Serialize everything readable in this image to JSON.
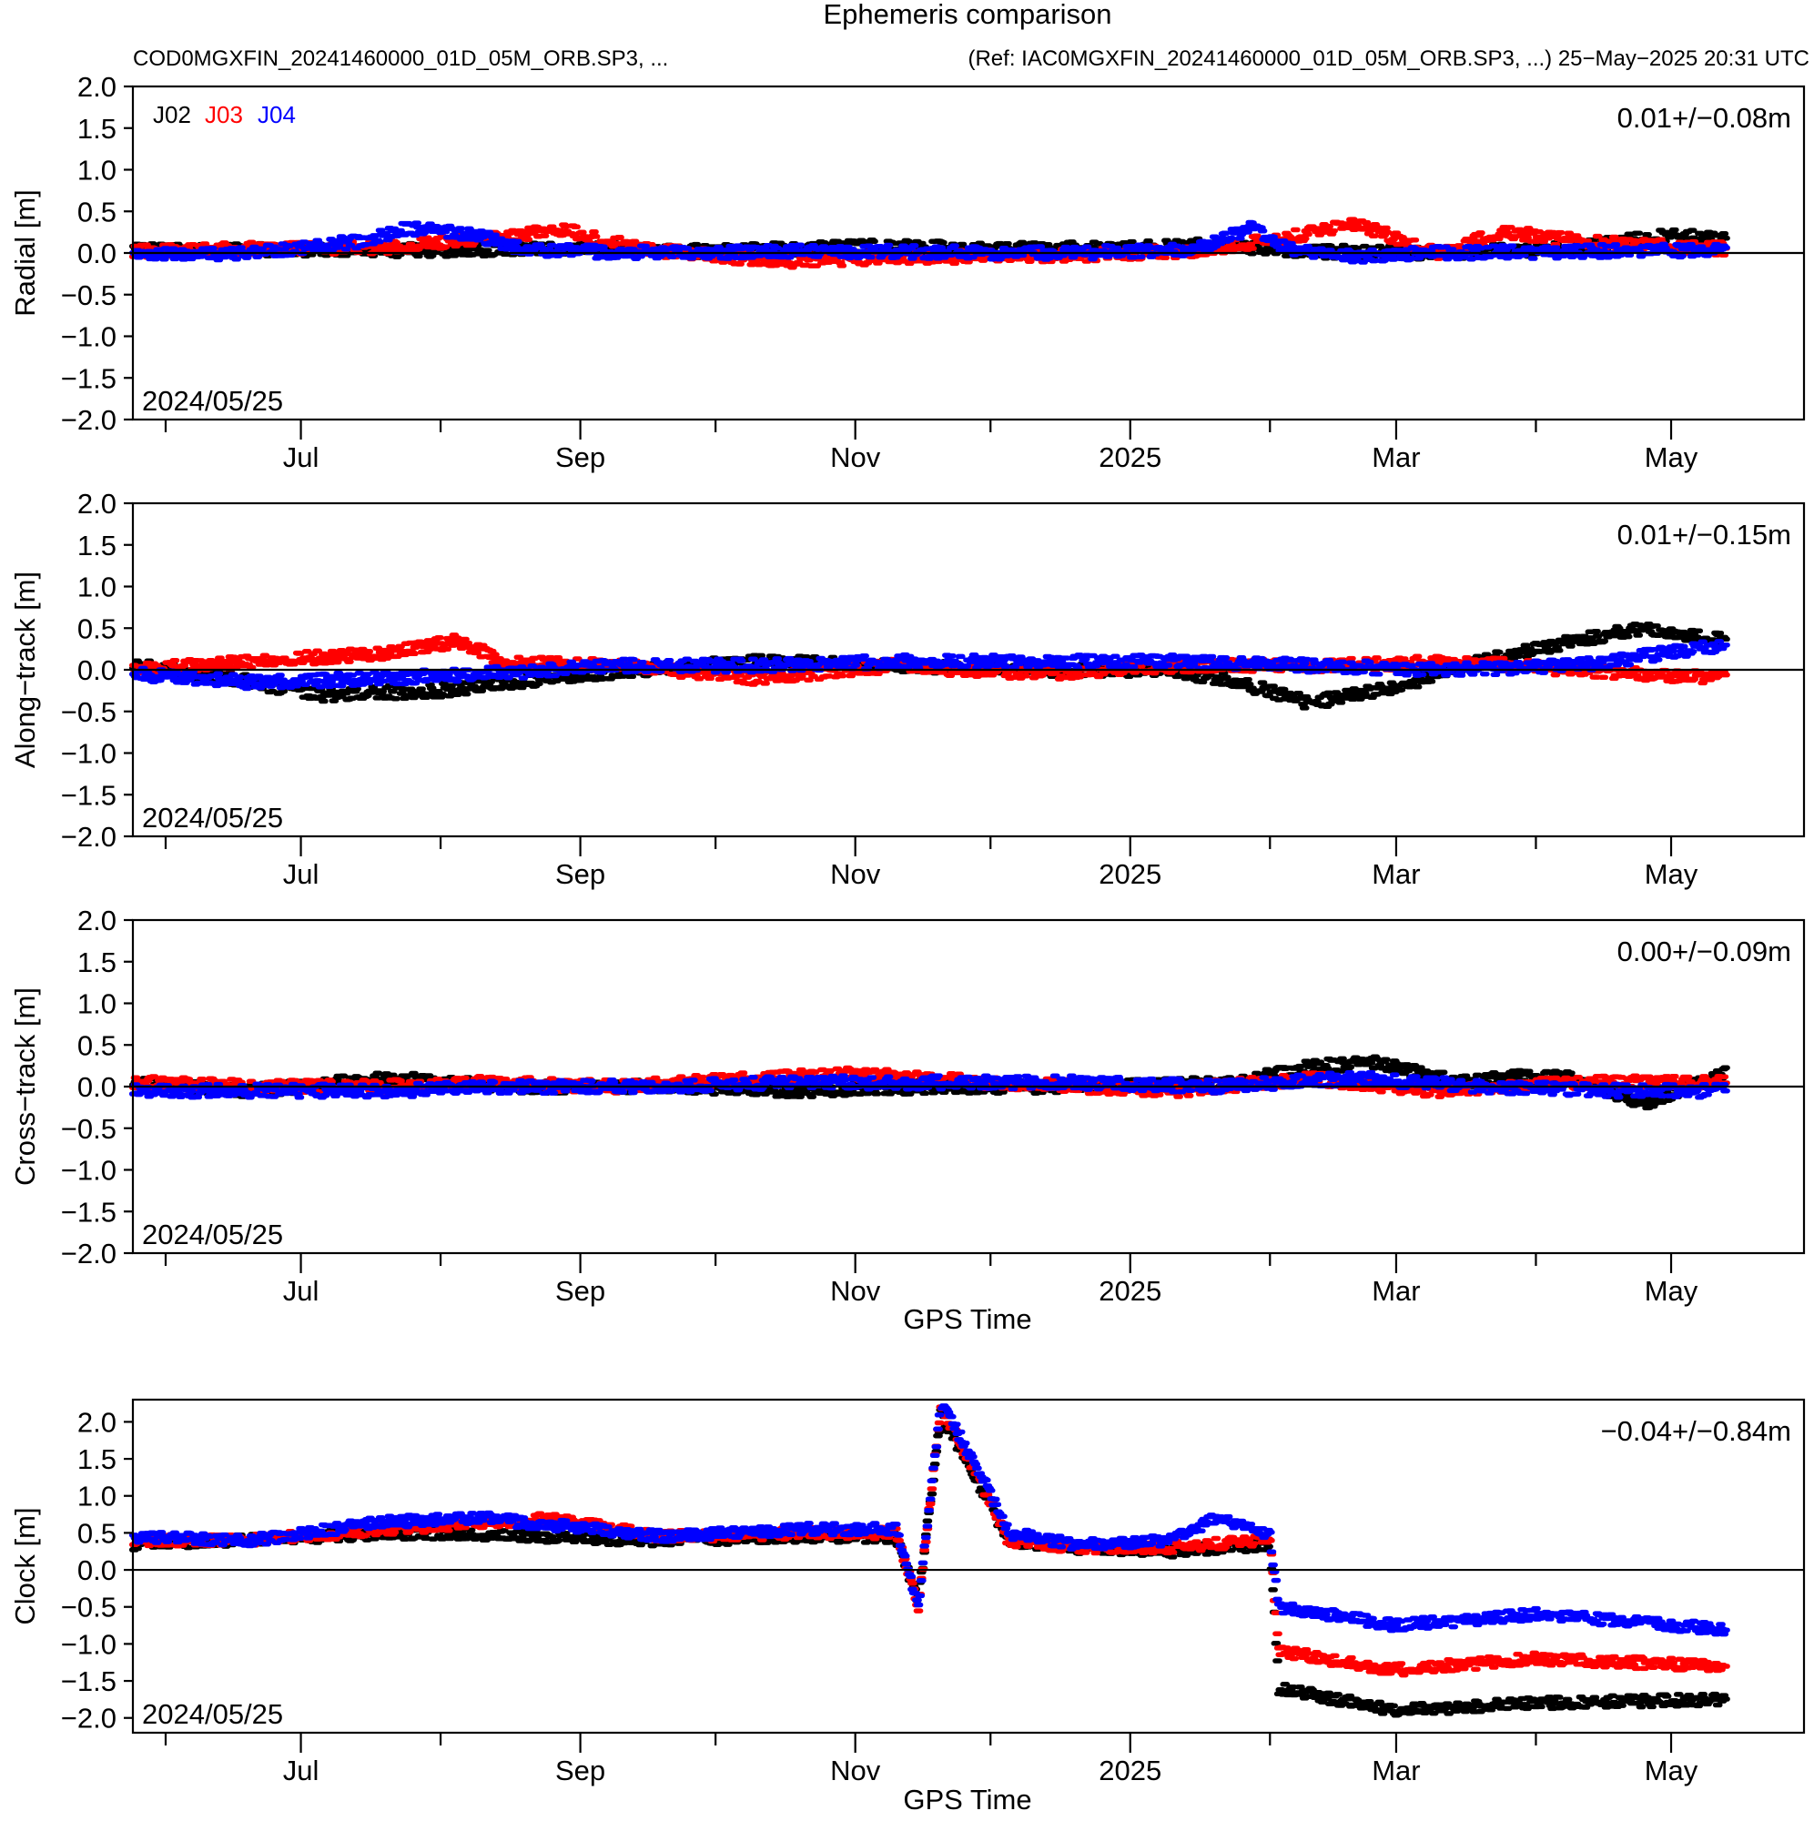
{
  "header": {
    "title": "Ephemeris comparison",
    "left": "COD0MGXFIN_20241460000_01D_05M_ORB.SP3, ...",
    "right": "(Ref: IAC0MGXFIN_20241460000_01D_05M_ORB.SP3, ...)  25−May−2025 20:31 UTC"
  },
  "colors": {
    "J02": "#000000",
    "J03": "#ff0000",
    "J04": "#0000ff"
  },
  "chart_data": [
    {
      "type": "scatter",
      "panel": "radial",
      "ylabel": "Radial [m]",
      "xlabel": "",
      "stat": "0.01+/−0.08m",
      "start_label": "2024/05/25",
      "legend": [
        "J02",
        "J03",
        "J04"
      ],
      "legend_placement": "top-left",
      "ylim": [
        -2.0,
        2.0
      ],
      "yticks": [
        "2.0",
        "1.5",
        "1.0",
        "0.5",
        "0.0",
        "−0.5",
        "−1.0",
        "−1.5",
        "−2.0"
      ],
      "xlim": [
        "2024-05-25",
        "2025-05-25"
      ],
      "xtick_labels": [
        "Jul",
        "Sep",
        "Nov",
        "2025",
        "Mar",
        "May"
      ],
      "zero_line": true,
      "series": [
        {
          "name": "J02",
          "color": "#000000",
          "points": [
            [
              "2024-05-25",
              0.03
            ],
            [
              "2024-06-15",
              0.04
            ],
            [
              "2024-07-10",
              0.03
            ],
            [
              "2024-08-05",
              0.04
            ],
            [
              "2024-09-01",
              0.05
            ],
            [
              "2024-10-01",
              0.02
            ],
            [
              "2024-11-05",
              0.08
            ],
            [
              "2024-12-01",
              0.05
            ],
            [
              "2025-01-01",
              0.06
            ],
            [
              "2025-01-20",
              0.1
            ],
            [
              "2025-02-10",
              0.02
            ],
            [
              "2025-03-10",
              0.0
            ],
            [
              "2025-04-10",
              0.06
            ],
            [
              "2025-05-01",
              0.22
            ],
            [
              "2025-05-13",
              0.15
            ]
          ]
        },
        {
          "name": "J03",
          "color": "#ff0000",
          "points": [
            [
              "2024-05-25",
              0.02
            ],
            [
              "2024-06-20",
              0.05
            ],
            [
              "2024-07-20",
              0.06
            ],
            [
              "2024-08-28",
              0.28
            ],
            [
              "2024-09-15",
              0.05
            ],
            [
              "2024-10-15",
              -0.1
            ],
            [
              "2024-11-10",
              -0.05
            ],
            [
              "2024-12-10",
              -0.04
            ],
            [
              "2025-01-15",
              0.02
            ],
            [
              "2025-02-05",
              0.18
            ],
            [
              "2025-02-20",
              0.35
            ],
            [
              "2025-03-10",
              0.0
            ],
            [
              "2025-03-25",
              0.25
            ],
            [
              "2025-04-15",
              0.12
            ],
            [
              "2025-05-13",
              0.05
            ]
          ]
        },
        {
          "name": "J04",
          "color": "#0000ff",
          "points": [
            [
              "2024-05-25",
              -0.03
            ],
            [
              "2024-06-20",
              0.0
            ],
            [
              "2024-07-15",
              0.15
            ],
            [
              "2024-07-25",
              0.3
            ],
            [
              "2024-08-10",
              0.2
            ],
            [
              "2024-08-20",
              0.03
            ],
            [
              "2024-09-20",
              0.0
            ],
            [
              "2024-10-20",
              0.02
            ],
            [
              "2024-11-20",
              0.01
            ],
            [
              "2024-12-20",
              0.0
            ],
            [
              "2025-01-15",
              0.05
            ],
            [
              "2025-01-28",
              0.3
            ],
            [
              "2025-02-05",
              0.05
            ],
            [
              "2025-02-15",
              -0.05
            ],
            [
              "2025-03-10",
              0.0
            ],
            [
              "2025-04-10",
              0.02
            ],
            [
              "2025-05-13",
              0.03
            ]
          ]
        }
      ]
    },
    {
      "type": "scatter",
      "panel": "along-track",
      "ylabel": "Along−track [m]",
      "xlabel": "",
      "stat": "0.01+/−0.15m",
      "start_label": "2024/05/25",
      "ylim": [
        -2.0,
        2.0
      ],
      "yticks": [
        "2.0",
        "1.5",
        "1.0",
        "0.5",
        "0.0",
        "−0.5",
        "−1.0",
        "−1.5",
        "−2.0"
      ],
      "xlim": [
        "2024-05-25",
        "2025-05-25"
      ],
      "xtick_labels": [
        "Jul",
        "Sep",
        "Nov",
        "2025",
        "Mar",
        "May"
      ],
      "zero_line": true,
      "series": [
        {
          "name": "J02",
          "color": "#000000",
          "points": [
            [
              "2024-05-25",
              0.05
            ],
            [
              "2024-06-15",
              -0.1
            ],
            [
              "2024-07-05",
              -0.3
            ],
            [
              "2024-08-01",
              -0.25
            ],
            [
              "2024-08-25",
              -0.1
            ],
            [
              "2024-09-15",
              0.0
            ],
            [
              "2024-10-10",
              0.1
            ],
            [
              "2024-11-10",
              0.05
            ],
            [
              "2024-12-10",
              0.0
            ],
            [
              "2025-01-10",
              0.0
            ],
            [
              "2025-01-25",
              -0.15
            ],
            [
              "2025-02-10",
              -0.4
            ],
            [
              "2025-03-01",
              -0.2
            ],
            [
              "2025-03-20",
              0.1
            ],
            [
              "2025-04-05",
              0.3
            ],
            [
              "2025-04-25",
              0.5
            ],
            [
              "2025-05-13",
              0.35
            ]
          ]
        },
        {
          "name": "J03",
          "color": "#ff0000",
          "points": [
            [
              "2024-05-25",
              0.0
            ],
            [
              "2024-06-20",
              0.1
            ],
            [
              "2024-07-20",
              0.2
            ],
            [
              "2024-08-05",
              0.35
            ],
            [
              "2024-08-15",
              0.1
            ],
            [
              "2024-09-10",
              0.05
            ],
            [
              "2024-10-10",
              -0.1
            ],
            [
              "2024-11-10",
              0.05
            ],
            [
              "2024-12-10",
              -0.05
            ],
            [
              "2025-01-15",
              0.05
            ],
            [
              "2025-02-15",
              0.05
            ],
            [
              "2025-03-15",
              0.1
            ],
            [
              "2025-04-10",
              0.0
            ],
            [
              "2025-05-13",
              -0.1
            ]
          ]
        },
        {
          "name": "J04",
          "color": "#0000ff",
          "points": [
            [
              "2024-05-25",
              -0.05
            ],
            [
              "2024-06-20",
              -0.15
            ],
            [
              "2024-07-20",
              -0.1
            ],
            [
              "2024-08-10",
              -0.05
            ],
            [
              "2024-09-10",
              0.05
            ],
            [
              "2024-10-10",
              0.05
            ],
            [
              "2024-11-10",
              0.1
            ],
            [
              "2024-12-10",
              0.1
            ],
            [
              "2025-01-10",
              0.1
            ],
            [
              "2025-02-10",
              0.05
            ],
            [
              "2025-03-10",
              0.0
            ],
            [
              "2025-04-10",
              0.05
            ],
            [
              "2025-05-13",
              0.3
            ]
          ]
        }
      ]
    },
    {
      "type": "scatter",
      "panel": "cross-track",
      "ylabel": "Cross−track [m]",
      "xlabel": "GPS Time",
      "stat": "0.00+/−0.09m",
      "start_label": "2024/05/25",
      "ylim": [
        -2.0,
        2.0
      ],
      "yticks": [
        "2.0",
        "1.5",
        "1.0",
        "0.5",
        "0.0",
        "−0.5",
        "−1.0",
        "−1.5",
        "−2.0"
      ],
      "xlim": [
        "2024-05-25",
        "2025-05-25"
      ],
      "xtick_labels": [
        "Jul",
        "Sep",
        "Nov",
        "2025",
        "Mar",
        "May"
      ],
      "zero_line": true,
      "series": [
        {
          "name": "J02",
          "color": "#000000",
          "points": [
            [
              "2024-05-25",
              0.05
            ],
            [
              "2024-06-20",
              -0.05
            ],
            [
              "2024-07-20",
              0.1
            ],
            [
              "2024-08-20",
              0.0
            ],
            [
              "2024-09-20",
              0.0
            ],
            [
              "2024-10-20",
              -0.05
            ],
            [
              "2024-11-20",
              0.0
            ],
            [
              "2024-12-20",
              0.0
            ],
            [
              "2025-01-25",
              0.05
            ],
            [
              "2025-02-10",
              0.25
            ],
            [
              "2025-02-25",
              0.28
            ],
            [
              "2025-03-15",
              0.05
            ],
            [
              "2025-04-05",
              0.15
            ],
            [
              "2025-04-25",
              -0.2
            ],
            [
              "2025-05-13",
              0.15
            ]
          ]
        },
        {
          "name": "J03",
          "color": "#ff0000",
          "points": [
            [
              "2024-05-25",
              0.05
            ],
            [
              "2024-06-20",
              0.0
            ],
            [
              "2024-07-20",
              0.0
            ],
            [
              "2024-08-10",
              0.05
            ],
            [
              "2024-09-10",
              0.0
            ],
            [
              "2024-10-10",
              0.1
            ],
            [
              "2024-11-01",
              0.15
            ],
            [
              "2024-12-01",
              0.05
            ],
            [
              "2025-01-10",
              -0.05
            ],
            [
              "2025-02-10",
              0.1
            ],
            [
              "2025-03-10",
              -0.05
            ],
            [
              "2025-04-10",
              0.05
            ],
            [
              "2025-05-13",
              0.05
            ]
          ]
        },
        {
          "name": "J04",
          "color": "#0000ff",
          "points": [
            [
              "2024-05-25",
              -0.05
            ],
            [
              "2024-06-20",
              -0.05
            ],
            [
              "2024-07-20",
              -0.05
            ],
            [
              "2024-08-20",
              0.0
            ],
            [
              "2024-09-20",
              0.0
            ],
            [
              "2024-10-20",
              0.05
            ],
            [
              "2024-11-20",
              0.05
            ],
            [
              "2024-12-20",
              0.05
            ],
            [
              "2025-01-20",
              0.0
            ],
            [
              "2025-02-20",
              0.1
            ],
            [
              "2025-03-20",
              0.0
            ],
            [
              "2025-04-20",
              -0.05
            ],
            [
              "2025-05-13",
              -0.05
            ]
          ]
        }
      ]
    },
    {
      "type": "scatter",
      "panel": "clock",
      "ylabel": "Clock [m]",
      "xlabel": "GPS Time",
      "stat": "−0.04+/−0.84m",
      "start_label": "2024/05/25",
      "ylim": [
        -2.2,
        2.3
      ],
      "yticks": [
        "2.0",
        "1.5",
        "1.0",
        "0.5",
        "0.0",
        "−0.5",
        "−1.0",
        "−1.5",
        "−2.0"
      ],
      "xlim": [
        "2024-05-25",
        "2025-05-25"
      ],
      "xtick_labels": [
        "Jul",
        "Sep",
        "Nov",
        "2025",
        "Mar",
        "May"
      ],
      "zero_line": true,
      "series": [
        {
          "name": "J02",
          "color": "#000000",
          "points": [
            [
              "2024-05-25",
              0.35
            ],
            [
              "2024-06-20",
              0.4
            ],
            [
              "2024-07-20",
              0.5
            ],
            [
              "2024-08-20",
              0.45
            ],
            [
              "2024-09-20",
              0.4
            ],
            [
              "2024-10-20",
              0.45
            ],
            [
              "2024-11-10",
              0.45
            ],
            [
              "2024-11-15",
              -0.4
            ],
            [
              "2024-11-20",
              2.1
            ],
            [
              "2024-11-28",
              1.2
            ],
            [
              "2024-12-05",
              0.4
            ],
            [
              "2024-12-20",
              0.3
            ],
            [
              "2025-01-10",
              0.25
            ],
            [
              "2025-02-01",
              0.35
            ],
            [
              "2025-02-03",
              -1.6
            ],
            [
              "2025-03-01",
              -1.9
            ],
            [
              "2025-04-01",
              -1.8
            ],
            [
              "2025-05-13",
              -1.75
            ]
          ]
        },
        {
          "name": "J03",
          "color": "#ff0000",
          "points": [
            [
              "2024-05-25",
              0.4
            ],
            [
              "2024-06-20",
              0.4
            ],
            [
              "2024-07-20",
              0.55
            ],
            [
              "2024-08-25",
              0.7
            ],
            [
              "2024-09-20",
              0.45
            ],
            [
              "2024-10-20",
              0.5
            ],
            [
              "2024-11-10",
              0.5
            ],
            [
              "2024-11-15",
              -0.5
            ],
            [
              "2024-11-20",
              2.2
            ],
            [
              "2024-11-28",
              1.3
            ],
            [
              "2024-12-05",
              0.4
            ],
            [
              "2024-12-20",
              0.3
            ],
            [
              "2025-01-10",
              0.3
            ],
            [
              "2025-02-01",
              0.4
            ],
            [
              "2025-02-03",
              -1.1
            ],
            [
              "2025-03-01",
              -1.35
            ],
            [
              "2025-04-01",
              -1.2
            ],
            [
              "2025-05-13",
              -1.3
            ]
          ]
        },
        {
          "name": "J04",
          "color": "#0000ff",
          "points": [
            [
              "2024-05-25",
              0.45
            ],
            [
              "2024-06-20",
              0.4
            ],
            [
              "2024-07-20",
              0.65
            ],
            [
              "2024-08-10",
              0.7
            ],
            [
              "2024-09-20",
              0.45
            ],
            [
              "2024-10-20",
              0.55
            ],
            [
              "2024-11-10",
              0.55
            ],
            [
              "2024-11-15",
              -0.45
            ],
            [
              "2024-11-20",
              2.25
            ],
            [
              "2024-11-28",
              1.4
            ],
            [
              "2024-12-05",
              0.5
            ],
            [
              "2024-12-20",
              0.35
            ],
            [
              "2025-01-10",
              0.4
            ],
            [
              "2025-01-20",
              0.7
            ],
            [
              "2025-02-01",
              0.45
            ],
            [
              "2025-02-03",
              -0.5
            ],
            [
              "2025-03-01",
              -0.75
            ],
            [
              "2025-04-01",
              -0.6
            ],
            [
              "2025-05-13",
              -0.8
            ]
          ]
        }
      ]
    }
  ]
}
